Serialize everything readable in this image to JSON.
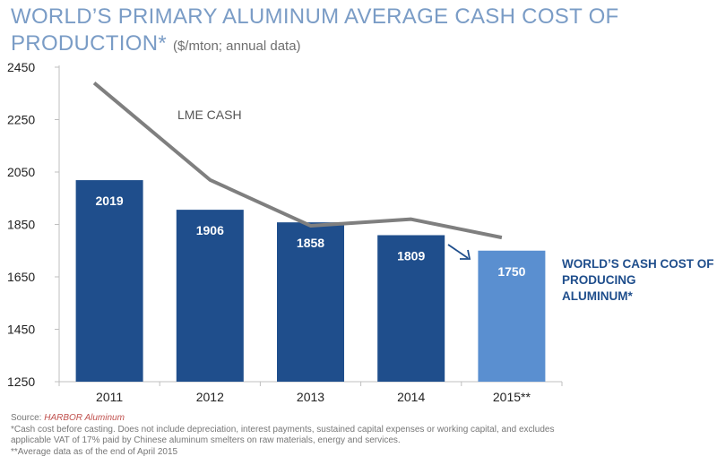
{
  "title": {
    "main_line1": "WORLD’S PRIMARY ALUMINUM AVERAGE CASH COST OF",
    "main_line2": "PRODUCTION*",
    "unit": "($/mton; annual data)"
  },
  "chart_data": {
    "type": "bar",
    "categories": [
      "2011",
      "2012",
      "2013",
      "2014",
      "2015**"
    ],
    "series": [
      {
        "name": "WORLD’S CASH COST OF PRODUCING ALUMINUM*",
        "kind": "bar",
        "values": [
          2019,
          1906,
          1858,
          1809,
          1750
        ],
        "colors": [
          "#1f4e8c",
          "#1f4e8c",
          "#1f4e8c",
          "#1f4e8c",
          "#5a8fd0"
        ]
      },
      {
        "name": "LME CASH",
        "kind": "line",
        "color": "#7f7f7f",
        "values": [
          2390,
          2020,
          1845,
          1870,
          1800
        ]
      }
    ],
    "yticks": [
      "1250",
      "1450",
      "1650",
      "1850",
      "2050",
      "2250",
      "2450"
    ],
    "ylim": [
      1250,
      2450
    ],
    "grid": false,
    "annotations": {
      "line_label": "LME CASH",
      "callout_line1": "WORLD’S  CASH COST OF",
      "callout_line2": "PRODUCING",
      "callout_line3": "ALUMINUM*"
    }
  },
  "footnotes": {
    "source_prefix": "Source: ",
    "source_name": "HARBOR Aluminum",
    "note1": "*Cash cost before casting. Does not include depreciation, interest payments, sustained capital expenses or working capital, and excludes",
    "note2": "applicable VAT of 17%  paid by Chinese aluminum smelters on raw materials, energy and services.",
    "note3": "**Average data as of the end of April 2015"
  }
}
